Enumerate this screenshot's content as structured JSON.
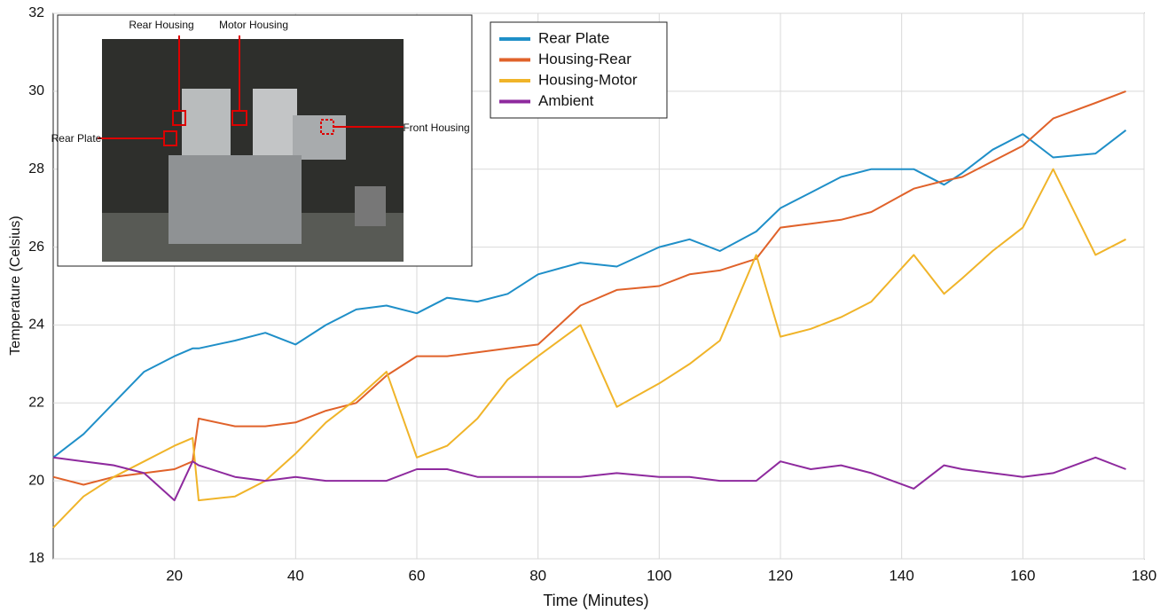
{
  "chart_data": {
    "type": "line",
    "x_label": "Time (Minutes)",
    "y_label": "Temperature (Celsius)",
    "xlim": [
      0,
      180
    ],
    "xticks": [
      20,
      40,
      60,
      80,
      100,
      120,
      140,
      160,
      180
    ],
    "ylim": [
      18,
      32
    ],
    "yticks": [
      18,
      20,
      22,
      24,
      26,
      28,
      30,
      32
    ],
    "grid": true,
    "legend": "top",
    "annotations": [
      "Rear Housing",
      "Motor Housing",
      "Rear Plate",
      "Front Housing"
    ],
    "x": [
      0,
      5,
      10,
      15,
      20,
      23,
      24,
      30,
      35,
      40,
      45,
      50,
      55,
      60,
      65,
      70,
      75,
      80,
      87,
      93,
      100,
      105,
      110,
      116,
      120,
      125,
      130,
      135,
      142,
      147,
      150,
      155,
      160,
      165,
      172,
      177
    ],
    "series": [
      {
        "name": "Rear Plate",
        "color": "#1f8fc8",
        "values": [
          20.6,
          21.2,
          22.0,
          22.8,
          23.2,
          23.4,
          23.4,
          23.6,
          23.8,
          23.5,
          24.0,
          24.4,
          24.5,
          24.3,
          24.7,
          24.6,
          24.8,
          25.3,
          25.6,
          25.5,
          26.0,
          26.2,
          25.9,
          26.4,
          27.0,
          27.4,
          27.8,
          28.0,
          28.0,
          27.6,
          27.9,
          28.5,
          28.9,
          28.3,
          28.4,
          29.0
        ]
      },
      {
        "name": "Housing-Rear",
        "color": "#e0622a",
        "values": [
          20.1,
          19.9,
          20.1,
          20.2,
          20.3,
          20.5,
          21.6,
          21.4,
          21.4,
          21.5,
          21.8,
          22.0,
          22.7,
          23.2,
          23.2,
          23.3,
          23.4,
          23.5,
          24.5,
          24.9,
          25.0,
          25.3,
          25.4,
          25.7,
          26.5,
          26.6,
          26.7,
          26.9,
          27.5,
          27.7,
          27.8,
          28.2,
          28.6,
          29.3,
          29.7,
          30.0
        ]
      },
      {
        "name": "Housing-Motor",
        "color": "#f0b429",
        "values": [
          18.8,
          19.6,
          20.1,
          20.5,
          20.9,
          21.1,
          19.5,
          19.6,
          20.0,
          20.7,
          21.5,
          22.1,
          22.8,
          20.6,
          20.9,
          21.6,
          22.6,
          23.2,
          24.0,
          21.9,
          22.5,
          23.0,
          23.6,
          25.8,
          23.7,
          23.9,
          24.2,
          24.6,
          25.8,
          24.8,
          25.2,
          25.9,
          26.5,
          28.0,
          25.8,
          26.2
        ]
      },
      {
        "name": "Ambient",
        "color": "#8e2a9e",
        "values": [
          20.6,
          20.5,
          20.4,
          20.2,
          19.5,
          20.5,
          20.4,
          20.1,
          20.0,
          20.1,
          20.0,
          20.0,
          20.0,
          20.3,
          20.3,
          20.1,
          20.1,
          20.1,
          20.1,
          20.2,
          20.1,
          20.1,
          20.0,
          20.0,
          20.5,
          20.3,
          20.4,
          20.2,
          19.8,
          20.4,
          20.3,
          20.2,
          20.1,
          20.2,
          20.6,
          20.3
        ]
      }
    ]
  }
}
